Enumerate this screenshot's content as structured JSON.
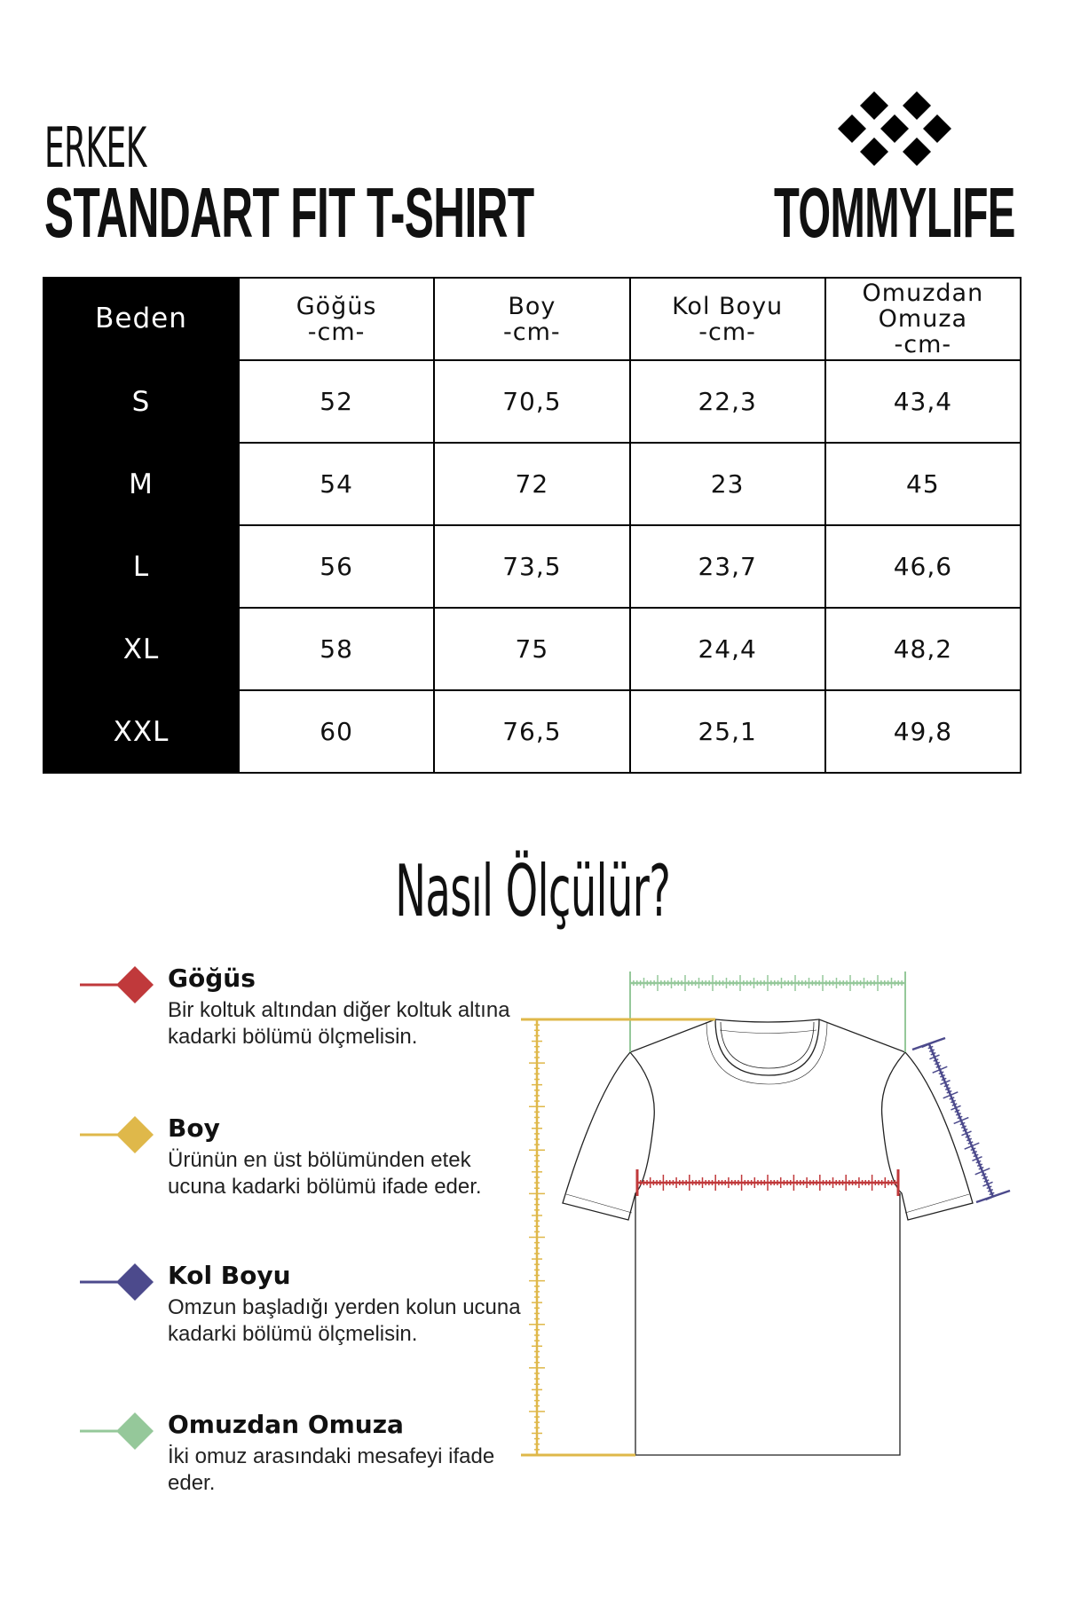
{
  "header": {
    "category": "ERKEK",
    "title": "STANDART FIT T-SHIRT",
    "brand": "TOMMYLIFE",
    "logo_icon": "diamond-cluster-logo"
  },
  "size_table": {
    "columns": [
      {
        "label": "Beden",
        "unit": ""
      },
      {
        "label": "Göğüs",
        "unit": "-cm-"
      },
      {
        "label": "Boy",
        "unit": "-cm-"
      },
      {
        "label": "Kol Boyu",
        "unit": "-cm-"
      },
      {
        "label": "Omuzdan Omuza",
        "unit": "-cm-"
      }
    ],
    "rows": [
      [
        "S",
        "52",
        "70,5",
        "22,3",
        "43,4"
      ],
      [
        "M",
        "54",
        "72",
        "23",
        "45"
      ],
      [
        "L",
        "56",
        "73,5",
        "23,7",
        "46,6"
      ],
      [
        "XL",
        "58",
        "75",
        "24,4",
        "48,2"
      ],
      [
        "XXL",
        "60",
        "76,5",
        "25,1",
        "49,8"
      ]
    ]
  },
  "guide": {
    "title": "Nasıl Ölçülür?",
    "items": [
      {
        "title": "Göğüs",
        "text": "Bir koltuk altından diğer koltuk altına kadarki bölümü ölçmelisin.",
        "color": "#c0393b"
      },
      {
        "title": "Boy",
        "text": "Ürünün en üst bölümünden etek ucuna kadarki bölümü ifade eder.",
        "color": "#dfb84a"
      },
      {
        "title": "Kol Boyu",
        "text": "Omzun başladığı yerden kolun ucuna kadarki bölümü ölçmelisin.",
        "color": "#4c4a8c"
      },
      {
        "title": "Omuzdan Omuza",
        "text": "İki omuz arasındaki mesafeyi ifade eder.",
        "color": "#95c89a"
      }
    ]
  }
}
